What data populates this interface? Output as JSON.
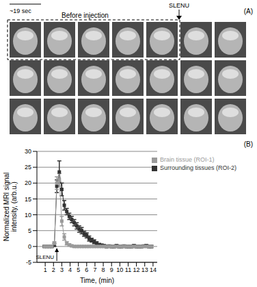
{
  "panel_a": {
    "label": "(A)",
    "scale": "~19 sec",
    "caption": "Before injection",
    "injection": "SLENU"
  },
  "chart_data": {
    "type": "line",
    "panel_label": "(B)",
    "xlabel": "Time, (min)",
    "ylabel": "Normalized MRI signal intensity, (arb.u.)",
    "annotations": [
      {
        "text": "SLENU",
        "x": 2.4
      }
    ],
    "x": [
      0.9,
      1.2,
      1.5,
      1.8,
      2.1,
      2.4,
      2.7,
      3.0,
      3.3,
      3.6,
      3.9,
      4.2,
      4.5,
      4.8,
      5.1,
      5.4,
      5.7,
      6.0,
      6.3,
      6.6,
      6.9,
      7.2,
      7.5,
      7.8,
      8.1,
      8.4,
      8.7,
      9.0,
      9.3,
      9.6,
      9.9,
      10.2,
      10.5,
      10.8,
      11.1,
      11.4,
      11.7,
      12.0,
      12.3,
      12.6,
      12.9,
      13.2,
      13.5,
      13.8
    ],
    "series": [
      {
        "name": "Surrounding tissues (ROI-2)",
        "color": "#333333",
        "marker": "square",
        "values": [
          0,
          0,
          0,
          0,
          0.5,
          19,
          23.5,
          18,
          13,
          11,
          9.5,
          8.5,
          7.5,
          6.5,
          5.5,
          5,
          4,
          3.5,
          2.5,
          2,
          1.5,
          1,
          0.5,
          0.3,
          0.2,
          0,
          0.1,
          0,
          0,
          0.2,
          0,
          0,
          0.1,
          0,
          0,
          0,
          0.2,
          0,
          0,
          0,
          0.1,
          0.2,
          0,
          0
        ],
        "errors": [
          0.3,
          0.3,
          0.3,
          0.3,
          0.5,
          2,
          3.5,
          2,
          1.5,
          1,
          1,
          1,
          1,
          1,
          1,
          1,
          0.8,
          0.8,
          0.8,
          0.6,
          0.6,
          0.5,
          0.5,
          0.5,
          0.4,
          0.4,
          0.4,
          0.4,
          0.4,
          0.4,
          0.4,
          0.4,
          0.4,
          0.4,
          0.4,
          0.4,
          0.4,
          0.4,
          0.4,
          0.4,
          0.4,
          0.4,
          0.4,
          0.4
        ]
      },
      {
        "name": "Brain tissue (ROI-1)",
        "color": "#9a9a9a",
        "marker": "square",
        "values": [
          0,
          0,
          0,
          0,
          1,
          20,
          21,
          8,
          3,
          1,
          0.5,
          0.2,
          0,
          0,
          0,
          0,
          0,
          0,
          0,
          0,
          0,
          0,
          0,
          0,
          0,
          0,
          0,
          0,
          0,
          0,
          0,
          0,
          0,
          0,
          0,
          0,
          0,
          0,
          0,
          0,
          0,
          0,
          0,
          0
        ],
        "errors": [
          0.3,
          0.3,
          0.3,
          0.3,
          0.5,
          2,
          2,
          1.5,
          1,
          0.5,
          0.4,
          0.3,
          0.3,
          0.3,
          0.3,
          0.3,
          0.3,
          0.3,
          0.3,
          0.3,
          0.3,
          0.3,
          0.3,
          0.3,
          0.3,
          0.3,
          0.3,
          0.3,
          0.3,
          0.3,
          0.3,
          0.3,
          0.3,
          0.3,
          0.3,
          0.3,
          0.3,
          0.3,
          0.3,
          0.3,
          0.3,
          0.3,
          0.3,
          0.3
        ]
      }
    ],
    "xlim": [
      0,
      14.5
    ],
    "xticks": [
      1,
      2,
      3,
      4,
      5,
      6,
      7,
      8,
      9,
      10,
      11,
      12,
      13,
      14
    ],
    "ylim": [
      -5,
      30
    ],
    "yticks": [
      -5,
      0,
      5,
      10,
      15,
      20,
      25,
      30
    ],
    "grid": true,
    "legend": "upper right"
  }
}
